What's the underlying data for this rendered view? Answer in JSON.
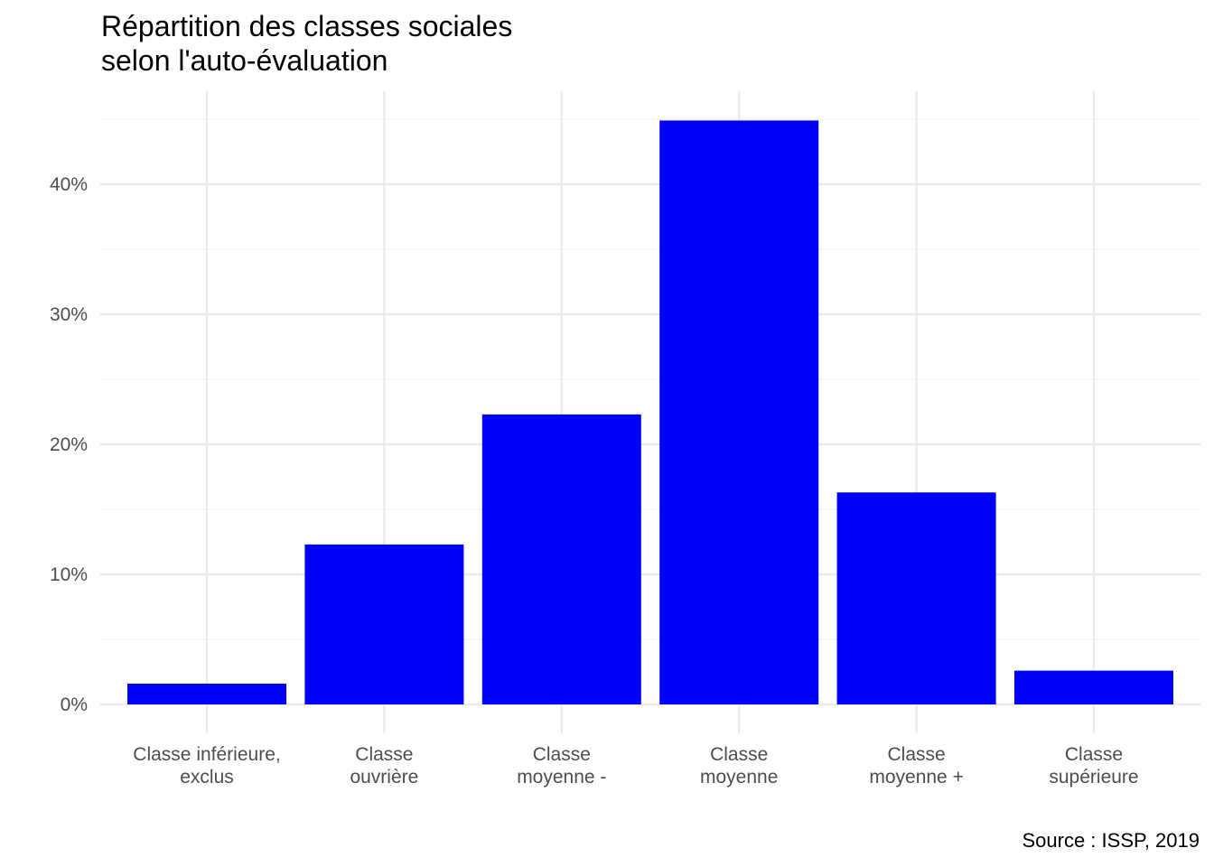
{
  "title_lines": [
    "Répartition des classes sociales",
    "selon l'auto-évaluation"
  ],
  "caption": "Source : ISSP, 2019",
  "colors": {
    "bar": "#0000ff",
    "grid_major": "#ebebeb",
    "grid_minor": "#f4f4f4",
    "tick_text": "#4d4d4d"
  },
  "chart_data": {
    "type": "bar",
    "categories": [
      [
        "Classe inférieure,",
        "exclus"
      ],
      [
        "Classe",
        "ouvrière"
      ],
      [
        "Classe",
        "moyenne -"
      ],
      [
        "Classe",
        "moyenne"
      ],
      [
        "Classe",
        "moyenne +"
      ],
      [
        "Classe",
        "supérieure"
      ]
    ],
    "values": [
      1.6,
      12.3,
      22.3,
      44.9,
      16.3,
      2.6
    ],
    "unit": "%",
    "ylim": [
      0,
      45
    ],
    "yticks": [
      0,
      10,
      20,
      30,
      40
    ],
    "ytick_labels": [
      "0%",
      "10%",
      "20%",
      "30%",
      "40%"
    ],
    "xlabel": "",
    "ylabel": "",
    "grid": true,
    "legend": "none"
  }
}
